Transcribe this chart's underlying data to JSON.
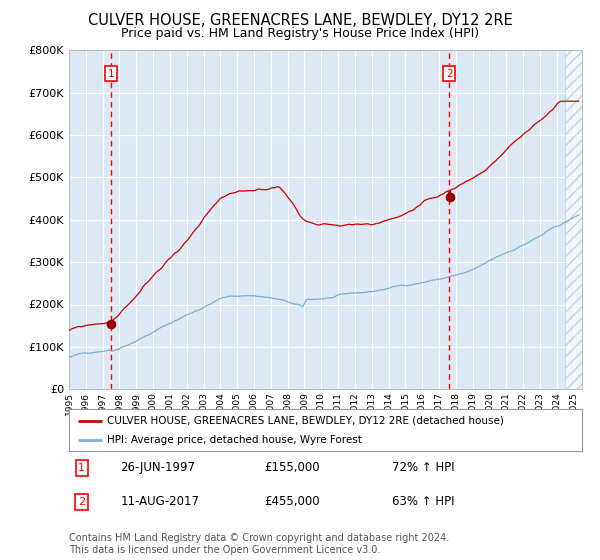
{
  "title": "CULVER HOUSE, GREENACRES LANE, BEWDLEY, DY12 2RE",
  "subtitle": "Price paid vs. HM Land Registry's House Price Index (HPI)",
  "title_fontsize": 10.5,
  "subtitle_fontsize": 9,
  "bg_color": "#dce9f5",
  "red_line_color": "#cc0000",
  "blue_line_color": "#7ab0d4",
  "sale1_date": 1997.49,
  "sale1_price": 155000,
  "sale1_label": "26-JUN-1997",
  "sale1_amount": "£155,000",
  "sale1_hpi": "72% ↑ HPI",
  "sale2_date": 2017.61,
  "sale2_price": 455000,
  "sale2_label": "11-AUG-2017",
  "sale2_amount": "£455,000",
  "sale2_hpi": "63% ↑ HPI",
  "xmin": 1995.0,
  "xmax": 2025.5,
  "ymin": 0,
  "ymax": 800000,
  "yticks": [
    0,
    100000,
    200000,
    300000,
    400000,
    500000,
    600000,
    700000,
    800000
  ],
  "ytick_labels": [
    "£0",
    "£100K",
    "£200K",
    "£300K",
    "£400K",
    "£500K",
    "£600K",
    "£700K",
    "£800K"
  ],
  "legend_label_red": "CULVER HOUSE, GREENACRES LANE, BEWDLEY, DY12 2RE (detached house)",
  "legend_label_blue": "HPI: Average price, detached house, Wyre Forest",
  "footer": "Contains HM Land Registry data © Crown copyright and database right 2024.\nThis data is licensed under the Open Government Licence v3.0.",
  "footer_fontsize": 7,
  "hatch_start": 2024.5
}
